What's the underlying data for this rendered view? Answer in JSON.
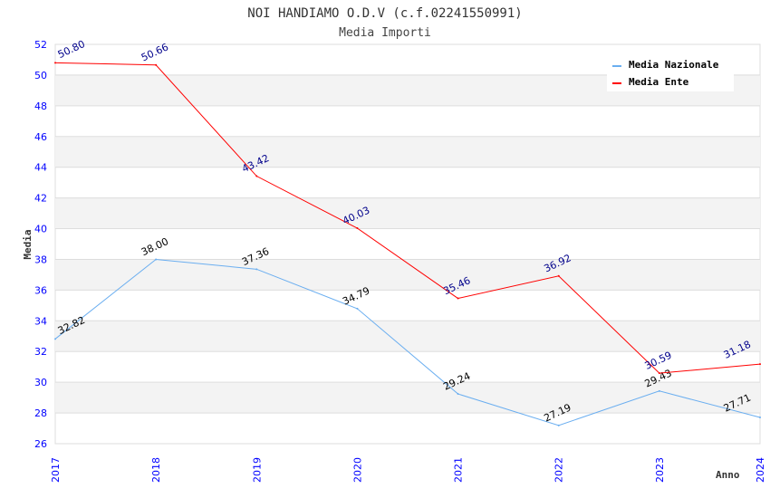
{
  "chart_data": {
    "type": "line",
    "title": "NOI HANDIAMO O.D.V (c.f.02241550991)",
    "subtitle": "Media Importi",
    "xlabel": "Anno",
    "ylabel": "Media",
    "ylim": [
      26,
      52
    ],
    "yticks": [
      "26",
      "28",
      "30",
      "32",
      "34",
      "36",
      "38",
      "40",
      "42",
      "44",
      "46",
      "48",
      "50",
      "52"
    ],
    "categories": [
      "2017",
      "2018",
      "2019",
      "2020",
      "2021",
      "2022",
      "2023",
      "2024"
    ],
    "series": [
      {
        "name": "Media Nazionale",
        "color": "#6aaef0",
        "values": [
          32.82,
          38.0,
          37.36,
          34.79,
          29.24,
          27.19,
          29.43,
          27.71
        ],
        "labels": [
          "32.82",
          "38.00",
          "37.36",
          "34.79",
          "29.24",
          "27.19",
          "29.43",
          "27.71"
        ]
      },
      {
        "name": "Media Ente",
        "color": "#ff0000",
        "values": [
          50.8,
          50.66,
          43.42,
          40.03,
          35.46,
          36.92,
          30.59,
          31.18
        ],
        "labels": [
          "50.80",
          "50.66",
          "43.42",
          "40.03",
          "35.46",
          "36.92",
          "30.59",
          "31.18"
        ]
      }
    ],
    "legend": "top-right",
    "grid": true
  }
}
